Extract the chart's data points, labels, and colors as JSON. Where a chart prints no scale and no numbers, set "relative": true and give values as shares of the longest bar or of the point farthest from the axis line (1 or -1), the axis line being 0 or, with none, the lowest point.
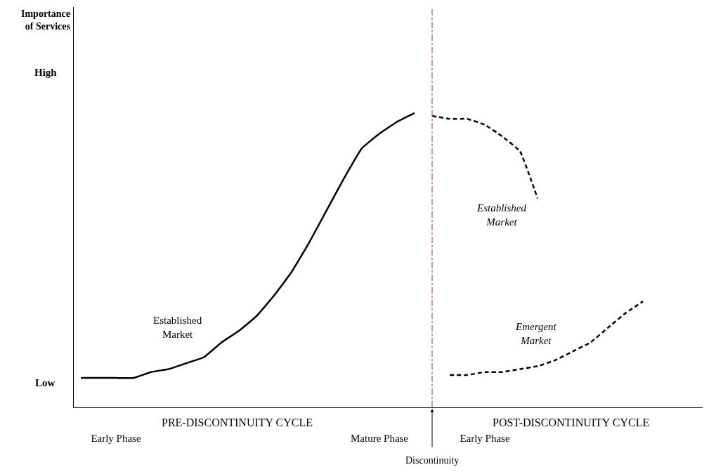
{
  "chart_data": {
    "type": "line",
    "relative": true,
    "categories": [
      null,
      null,
      "Early Phase",
      null,
      null,
      null,
      null,
      null,
      null,
      null,
      null,
      null,
      null,
      null,
      null,
      null,
      null,
      "Mature Phase",
      null,
      null,
      null,
      null,
      null,
      "Early Phase",
      null,
      null,
      null,
      null,
      null,
      null,
      null,
      null,
      null,
      null,
      null,
      null
    ],
    "series": [
      {
        "color": "#000000",
        "line_style": "solid",
        "values": [
          0.1,
          0.1,
          0.1,
          0.1,
          0.12,
          0.13,
          0.15,
          0.17,
          0.22,
          0.26,
          0.31,
          0.38,
          0.46,
          0.56,
          0.67,
          0.78,
          0.88,
          0.93,
          0.97,
          1.0,
          null,
          null,
          null,
          null,
          null,
          null,
          null,
          null,
          null,
          null,
          null,
          null,
          null,
          null,
          null,
          null
        ]
      },
      {
        "color": "#000000",
        "line_style": "dashed",
        "values": [
          null,
          null,
          null,
          null,
          null,
          null,
          null,
          null,
          null,
          null,
          null,
          null,
          null,
          null,
          null,
          null,
          null,
          null,
          null,
          null,
          0.99,
          0.98,
          0.98,
          0.96,
          0.92,
          0.87,
          0.71,
          null,
          null,
          null,
          null,
          null,
          null,
          null,
          null,
          null
        ]
      },
      {
        "color": "#000000",
        "line_style": "dashed",
        "values": [
          null,
          null,
          null,
          null,
          null,
          null,
          null,
          null,
          null,
          null,
          null,
          null,
          null,
          null,
          null,
          null,
          null,
          null,
          null,
          null,
          null,
          0.11,
          0.11,
          0.12,
          0.12,
          0.13,
          0.14,
          0.16,
          0.19,
          0.22,
          0.27,
          0.32,
          0.36,
          null,
          null,
          null
        ]
      }
    ],
    "annotations": [
      "Importance of Services",
      "High",
      "Low",
      "PRE-DISCONTINUITY CYCLE",
      "POST-DISCONTINUITY CYCLE",
      "Established Market",
      "Established Market",
      "Emergent Market",
      "Discontinuity"
    ]
  }
}
